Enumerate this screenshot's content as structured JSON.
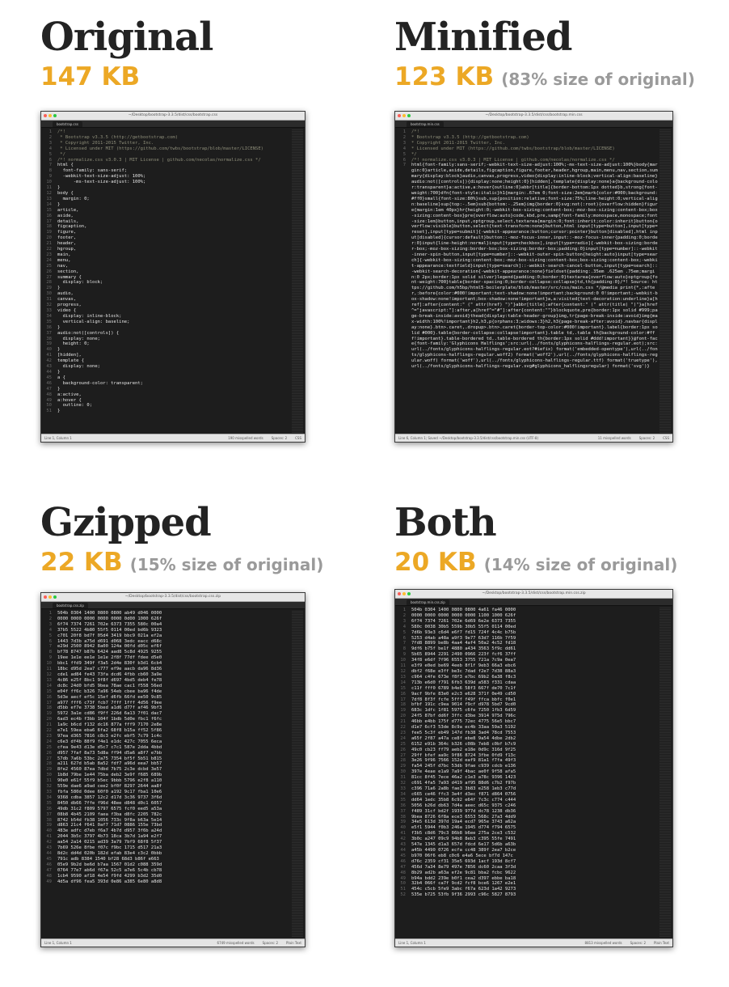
{
  "panels": {
    "original": {
      "heading": "Original",
      "size": "147 KB",
      "percent": "",
      "window": {
        "title": "~/Desktop/bootstrap-3.3.5/dist/css/bootstrap.css",
        "tab": "bootstrap.css",
        "status_left": "Line 1, Column 1",
        "status_words": "190 misspelled words",
        "status_spaces": "Spaces: 2",
        "status_syntax": "CSS",
        "lines": [
          "/*!",
          " * Bootstrap v3.3.5 (http://getbootstrap.com)",
          " * Copyright 2011-2015 Twitter, Inc.",
          " * Licensed under MIT (https://github.com/twbs/bootstrap/blob/master/LICENSE)",
          " */",
          "/*! normalize.css v3.0.3 | MIT License | github.com/necolas/normalize.css */",
          "html {",
          "  font-family: sans-serif;",
          "  -webkit-text-size-adjust: 100%;",
          "      -ms-text-size-adjust: 100%;",
          "}",
          "body {",
          "  margin: 0;",
          "}",
          "article,",
          "aside,",
          "details,",
          "figcaption,",
          "figure,",
          "footer,",
          "header,",
          "hgroup,",
          "main,",
          "menu,",
          "nav,",
          "section,",
          "summary {",
          "  display: block;",
          "}",
          "audio,",
          "canvas,",
          "progress,",
          "video {",
          "  display: inline-block;",
          "  vertical-align: baseline;",
          "}",
          "audio:not([controls]) {",
          "  display: none;",
          "  height: 0;",
          "}",
          "[hidden],",
          "template {",
          "  display: none;",
          "}",
          "a {",
          "  background-color: transparent;",
          "}",
          "a:active,",
          "a:hover {",
          "  outline: 0;",
          "}"
        ]
      }
    },
    "minified": {
      "heading": "Minified",
      "size": "123 KB",
      "percent": "(83% size of original)",
      "window": {
        "title": "~/Desktop/bootstrap-3.3.5/dist/css/bootstrap.min.css",
        "tab": "bootstrap.min.css",
        "status_left": "Line 6, Column 1; Saved ~/Desktop/bootstrap-3.3.5/dist/css/bootstrap.min.css (UTF-8)",
        "status_words": "11 misspelled words",
        "status_spaces": "Spaces: 2",
        "status_syntax": "CSS",
        "lines": [
          "/*!",
          " * Bootstrap v3.3.5 (http://getbootstrap.com)",
          " * Copyright 2011-2015 Twitter, Inc.",
          " * Licensed under MIT (https://github.com/twbs/bootstrap/blob/master/LICENSE)",
          " */",
          "/*! normalize.css v3.0.3 | MIT License | github.com/necolas/normalize.css */",
          "html{font-family:sans-serif;-webkit-text-size-adjust:100%;-ms-text-size-adjust:100%}body{margin:0}article,aside,details,figcaption,figure,footer,header,hgroup,main,menu,nav,section,summary{display:block}audio,canvas,progress,video{display:inline-block;vertical-align:baseline}audio:not([controls]){display:none;height:0}[hidden],template{display:none}a{background-color:transparent}a:active,a:hover{outline:0}abbr[title]{border-bottom:1px dotted}b,strong{font-weight:700}dfn{font-style:italic}h1{margin:.67em 0;font-size:2em}mark{color:#000;background:#ff0}small{font-size:80%}sub,sup{position:relative;font-size:75%;line-height:0;vertical-align:baseline}sup{top:-.5em}sub{bottom:-.25em}img{border:0}svg:not(:root){overflow:hidden}figure{margin:1em 40px}hr{height:0;-webkit-box-sizing:content-box;-moz-box-sizing:content-box;box-sizing:content-box}pre{overflow:auto}code,kbd,pre,samp{font-family:monospace,monospace;font-size:1em}button,input,optgroup,select,textarea{margin:0;font:inherit;color:inherit}button{overflow:visible}button,select{text-transform:none}button,html input[type=button],input[type=reset],input[type=submit]{-webkit-appearance:button;cursor:pointer}button[disabled],html input[disabled]{cursor:default}button::-moz-focus-inner,input::-moz-focus-inner{padding:0;border:0}input{line-height:normal}input[type=checkbox],input[type=radio]{-webkit-box-sizing:border-box;-moz-box-sizing:border-box;box-sizing:border-box;padding:0}input[type=number]::-webkit-inner-spin-button,input[type=number]::-webkit-outer-spin-button{height:auto}input[type=search]{-webkit-box-sizing:content-box;-moz-box-sizing:content-box;box-sizing:content-box;-webkit-appearance:textfield}input[type=search]::-webkit-search-cancel-button,input[type=search]::-webkit-search-decoration{-webkit-appearance:none}fieldset{padding:.35em .625em .75em;margin:0 2px;border:1px solid silver}legend{padding:0;border:0}textarea{overflow:auto}optgroup{font-weight:700}table{border-spacing:0;border-collapse:collapse}td,th{padding:0}/*! Source: https://github.com/h5bp/html5-boilerplate/blob/master/src/css/main.css */@media print{*,:after,:before{color:#000!important;text-shadow:none!important;background:0 0!important;-webkit-box-shadow:none!important;box-shadow:none!important}a,a:visited{text-decoration:underline}a[href]:after{content:\" (\" attr(href) \")\"}abbr[title]:after{content:\" (\" attr(title) \")\"}a[href^=\"javascript:\"]:after,a[href^=\"#\"]:after{content:\"\"}blockquote,pre{border:1px solid #999;page-break-inside:avoid}thead{display:table-header-group}img,tr{page-break-inside:avoid}img{max-width:100%!important}h2,h3,p{orphans:3;widows:3}h2,h3{page-break-after:avoid}.navbar{display:none}.btn>.caret,.dropup>.btn>.caret{border-top-color:#000!important}.label{border:1px solid #000}.table{border-collapse:collapse!important}.table td,.table th{background-color:#fff!important}.table-bordered td,.table-bordered th{border:1px solid #ddd!important}}@font-face{font-family:'Glyphicons Halflings';src:url(../fonts/glyphicons-halflings-regular.eot);src:url(../fonts/glyphicons-halflings-regular.eot?#iefix) format('embedded-opentype'),url(../fonts/glyphicons-halflings-regular.woff2) format('woff2'),url(../fonts/glyphicons-halflings-regular.woff) format('woff'),url(../fonts/glyphicons-halflings-regular.ttf) format('truetype'),url(../fonts/glyphicons-halflings-regular.svg#glyphicons_halflingsregular) format('svg')}"
        ]
      }
    },
    "gzipped": {
      "heading": "Gzipped",
      "size": "22 KB",
      "percent": "(15% size of original)",
      "window": {
        "title": "~/Desktop/bootstrap-3.3.5/dist/css/bootstrap.css.zip",
        "tab": "bootstrap.css.zip",
        "status_left": "Line 1, Column 1",
        "status_words": "6749 misspelled words",
        "status_spaces": "Spaces: 2",
        "status_syntax": "Plain Text",
        "lines": [
          "504b 0304 1400 0800 0800 ab49 d046 0000",
          "0000 0000 0000 0000 0000 0d00 1000 626f",
          "6f74 7374 7261 702e 6373 7355 580c 00a4",
          "37b5 5522 4b80 55f5 0114 00ed bd6b 9323",
          "c701 20f8 bd7f 05d4 3419 bbc9 021a ef2a",
          "1443 7d3b a75d d691 d068 3edc eacc d68c",
          "e29d 2500 8942 8a00 124a 00fd d05c ef6f",
          "bf78 8747 b87b 6424 aad8 5c8d 4925 9255",
          "19ee 1e1e ee1e 1e1e 2f8f 77df fdee d5e0",
          "bbc1 ffd9 349f f3a5 2d4e 830f b3d1 6cb4",
          "18bc d95d 2ea7 c777 ef9e aacb da96 8d36",
          "cde1 ad84 fe43 73fa dcd6 4fbb cb60 3a9e",
          "4c86 e25f 8bc1 9f8f d697 4bd5 deb4 fe78",
          "dc8c 24d0 bfd5 9bea 78ae cac1 f558 56ed",
          "e04f ff6c b326 7a96 54eb cbee ba96 f4de",
          "5d3e aecf ef5c 15ef d6fb 66fd ee50 9c85",
          "a977 fff6 c73f fcb7 7fff 1fff 4d56 f9ee",
          "d5bb ef7e 3738 5bed a1d6 d77f af46 9bf3",
          "5972 3a1e cd86 f9ff 226d 6a13 7f01 dac7",
          "6ad3 ec4b f3bb 104f 1bdb 5d0e fbc1 f6fc",
          "1a9c b6cd f132 dc16 877a fff9 7170 2e8e",
          "e7e1 59ea eba6 6fa2 68f8 b15a ff52 5f86",
          "97ea d365 7816 c8c3 e2fc ebf5 7c79 1c4c",
          "c6e3 df4b 88f9 f4e1 e1dc 427c 7055 6eca",
          "cfea 9e43 d13e d5c7 c7c1 587e 2dda 4bbd",
          "d957 7faf 8a73 5d8a ff94 d5a6 a8f7 e7bb",
          "57db 7a6b 53bc 2a75 7354 bf5f 5b51 b815",
          "a211 627d b5ab 8a52 fdf7 a96d eea7 bb57",
          "8fe2 4560 87ea 7dbd 7b75 2c3e dcbd 3e57",
          "1b8d 79be 1e44 75ba deb2 3e9f f685 689b",
          "90e0 e61f 55f9 b5ec 9bbb 5796 e2f8 a110",
          "559e dae6 a9ad cee2 bf0f 8297 2644 aa8f",
          "fbfa 580d 0dee 60f0 a192 9c17 fba1 10e6",
          "9368 cdba 3857 12c2 d17d 3c36 9737 3f6d",
          "8450 db66 7ffe f96d 48ee d848 d0c1 6057",
          "49db 31c2 f809 5797 6575 fcf0 eed5 a53a",
          "08b8 4b45 2109 faea f3ba d8fc 2205 782c",
          "8742 b54d fb38 1056 733c 9f8a b63a 5e14",
          "d863 21c4 f641 0af7 71d7 0886 155e 73bd",
          "483e adfc d7eb f6a7 4b7d d957 3f6b a24d",
          "2044 3b5c 3797 4b73 18ca 3b7d 1a94 e2f7",
          "aa54 2a14 0215 ad39 3a79 7bf9 68f8 5f37",
          "7b69 526e 8fbe f07c f9bc 1715 d517 21a3",
          "8d2c dd4d 020b 182d efab 83e4 c3c2 0bbb",
          "791c adb 8384 1540 bf28 68d3 b86f e663",
          "05e9 9b2d be6d b7aa 1567 01d2 c088 359d",
          "0764 77e7 ab6d f67a 52c5 a7e6 5c4b cb78",
          "1cb4 9590 af18 4e54 f9fd 4299 b3d2 35d0",
          "4d5a df96 fea5 393d 0e86 a385 6e80 a8d8"
        ]
      }
    },
    "both": {
      "heading": "Both",
      "size": "20 KB",
      "percent": "(14% size of original)",
      "window": {
        "title": "~/Desktop/bootstrap-3.3.5/dist/css/bootstrap.min.css.zip",
        "tab": "bootstrap.min.css.zip",
        "status_left": "Line 1, Column 1",
        "status_words": "8813 misspelled words",
        "status_spaces": "Spaces: 2",
        "status_syntax": "Plain Text",
        "lines": [
          "504b 0304 1400 0800 0800 4a61 fa46 0000",
          "0000 0000 0000 0000 0000 1100 1000 626f",
          "6f74 7374 7261 702e 6d69 6e2e 6373 7355",
          "580c 0038 30b5 559b 30b5 55f5 0114 00ed",
          "7d6b 93e3 c6d4 e6f7 fd15 724f 4c4c b75b",
          "5253 d4ab a48a a9f3 9e77 63d7 116b 7f59",
          "7fd8 8899 be8b 4aa4 4af4 50a2 4c52 fd18",
          "9df6 b75f be1f 4880 a434 3563 5f9c dd61",
          "5b65 8944 2291 2490 0966 223f fcf6 37ff",
          "34f8 e6df 7f96 6553 3755 721a 7c9a 0ea7",
          "e3f9 e0ed be69 4eeb 8f1f 9eb3 66a3 ebc6",
          "dbf2 f68e e3ff be3c 7dad f2e7 7d38 88a3",
          "c964 c4fe 673e f8f3 e7bc 69b2 6a38 f8c3",
          "713b e6d0 f791 6fb3 639d a583 f331 cdaa",
          "c11f fff0 6789 b4e6 58f3 667f de70 7c1f",
          "9acf 9bfe 83e0 e2c3 e628 371f 0e49 cd50",
          "7df8 8f3f fcfe 5fff f49f ffca bbfc f0e1",
          "bfbf 191c c9ea 9014 f9cf d978 5bd7 9cd0",
          "683c 1dfc 1f81 5975 c6fe 7250 1fb3 6d59",
          "24f5 87bf dd6f 3ffc d3be 3914 975d 796c",
          "46bb e4bb 175f d775 72ec 4775 56e5 bbc7",
          "d1e7 6cf3 53de 8c9a ec4b 33aa 59a3 5192",
          "fee5 5c3f eb49 147d fb38 3ad4 78cd 7553",
          "a65f 2f87 a47a ce8f ebe8 9a54 4dbe 2db2",
          "6152 e91b 364c b326 c08b 7eb8 c0bf b7c9",
          "49c0 cb23 ff79 aeb2 e18e 0d9c 316d 9f25",
          "29ff bfef aa9c 9f86 8724 3fbe 0fd9 f13c",
          "3e26 9f96 7566 152d eaf9 81a1 f7fa 49f3",
          "fa54 245f d7bc 53db 9fae c939 cdcb e136",
          "397e 4eae e1a9 7a9f 4bac ae0f 9f58 afa5",
          "81cc 8f45 7ece 46a2 c1e3 a78c 9396 1423",
          "c691 4fa5 7a93 d419 af95 88d6 c7b2 f97b",
          "c396 71a6 2a8b fae3 3b83 e258 1eb3 c77d",
          "c665 ce46 ffc3 3e4f d3ec f871 d864 0756",
          "dd64 1edc 35b8 6c92 e64f 7c3c c774 c444",
          "5056 b26d db63 7d4a aeec d65c 9375 c246",
          "f489 31cf bd2f 1939 977d dc78 1238 db36",
          "9bea 8726 6f8a ece3 6553 568c 27a3 4dd9",
          "34e5 613d 397d 19a4 ecd7 965e 3743 a62a",
          "e5f1 5944 f0b3 246a 1945 d774 f794 6575",
          "f3b5 c8d6 79c3 86b8 b6ee 275a 2ce3 c532",
          "3b0c a247 09c9 94b8 8eb3 c395 55fe 7491",
          "547e 1345 d1a3 657d fdcd 6e17 5d6b a63b",
          "a45b 4490 0726 ecfa cc48 389f 2ea7 b2ce",
          "b970 06f6 eb8 c0c6 e4a6 5ece bf7d 147c",
          "d76c 2359 cf31 35e5 693d 1acf 193d 8cf7",
          "456d 7a34 8e79 497e 7856 dc60 2caa 3f3d",
          "8b29 ad2b a63a ef2e 9c81 bba2 fcbc 9622",
          "b94a bdd2 239e b0f1 cea2 d397 ebbe ba18",
          "32b4 066f ca7f 9cd2 fcf8 bce6 1267 e2e1",
          "454c c5cb 5fe9 3abc f67a 623d 1a42 9273",
          "535e b725 53fb 9f36 2993 c96c 5827 8793"
        ]
      }
    }
  }
}
